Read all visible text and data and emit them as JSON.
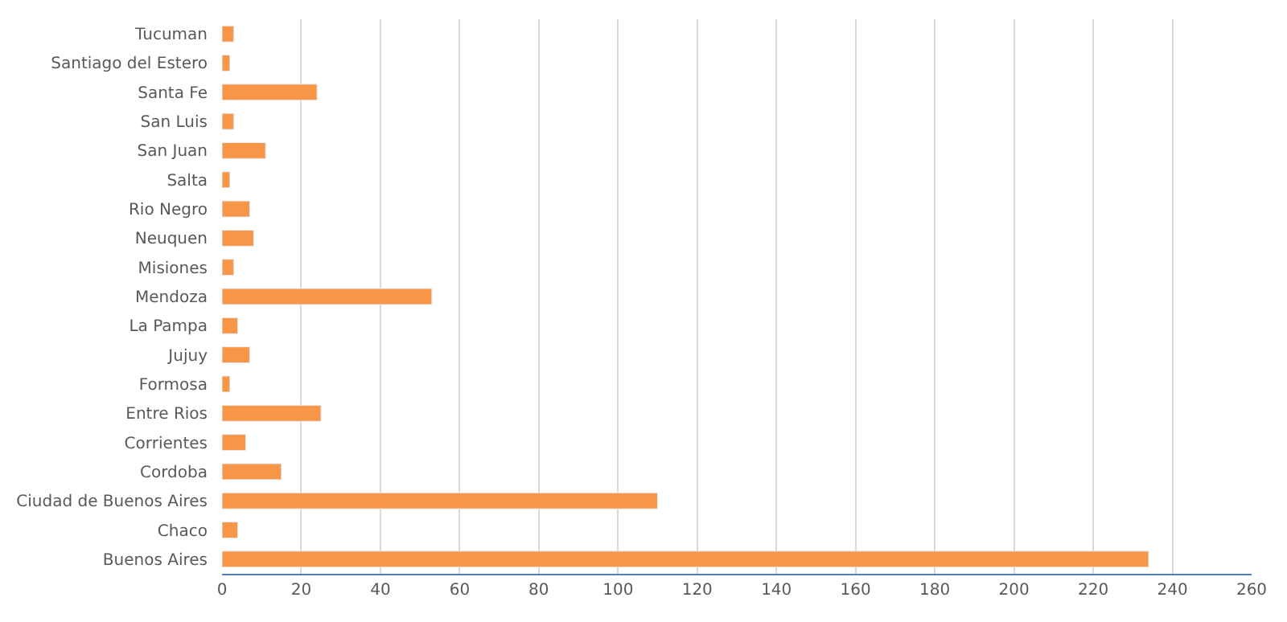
{
  "chart_data": {
    "type": "bar",
    "orientation": "horizontal",
    "categories": [
      "Tucuman",
      "Santiago del Estero",
      "Santa Fe",
      "San Luis",
      "San Juan",
      "Salta",
      "Rio Negro",
      "Neuquen",
      "Misiones",
      "Mendoza",
      "La Pampa",
      "Jujuy",
      "Formosa",
      "Entre Rios",
      "Corrientes",
      "Cordoba",
      "Ciudad de Buenos Aires",
      "Chaco",
      "Buenos Aires"
    ],
    "values": [
      3,
      2,
      24,
      3,
      11,
      2,
      7,
      8,
      3,
      53,
      4,
      7,
      2,
      25,
      6,
      15,
      110,
      4,
      234
    ],
    "color": "#f79646",
    "xlim": [
      0,
      260
    ],
    "xticks": [
      0,
      20,
      40,
      60,
      80,
      100,
      120,
      140,
      160,
      180,
      200,
      220,
      240,
      260
    ],
    "grid": "x"
  }
}
